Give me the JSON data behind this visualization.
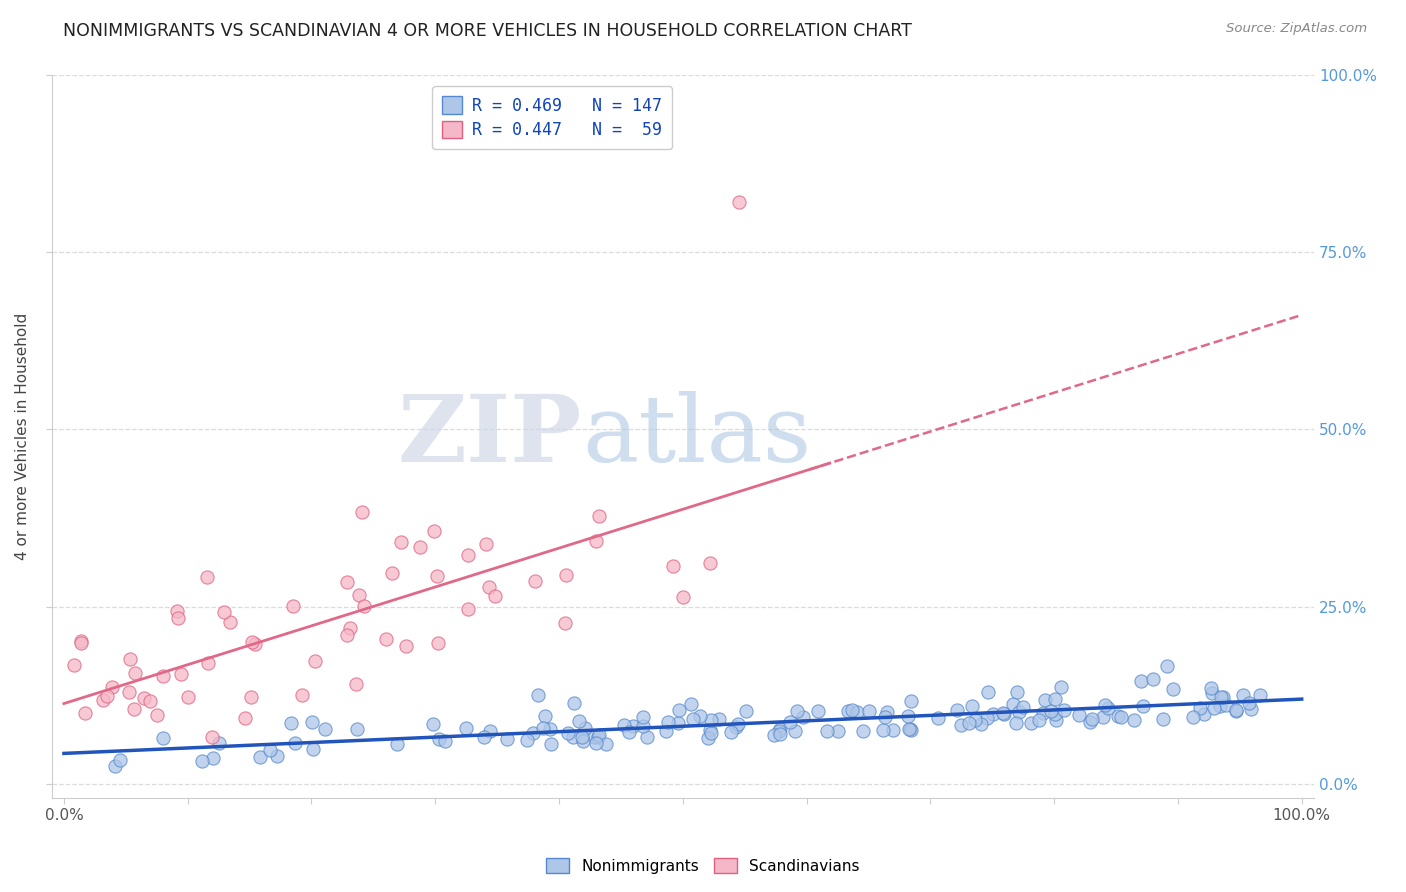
{
  "title": "NONIMMIGRANTS VS SCANDINAVIAN 4 OR MORE VEHICLES IN HOUSEHOLD CORRELATION CHART",
  "source": "Source: ZipAtlas.com",
  "ylabel": "4 or more Vehicles in Household",
  "legend_text_blue": "R = 0.469   N = 147",
  "legend_text_pink": "R = 0.447   N =  59",
  "watermark_zip": "ZIP",
  "watermark_atlas": "atlas",
  "blue_scatter_color": "#aec6e8",
  "blue_scatter_edge": "#5588cc",
  "pink_scatter_color": "#f5b8c8",
  "pink_scatter_edge": "#e06080",
  "blue_line_color": "#2255bb",
  "pink_line_color": "#e06888",
  "blue_R": 0.469,
  "pink_R": 0.447,
  "blue_N": 147,
  "pink_N": 59,
  "background_color": "#ffffff",
  "grid_color": "#cccccc",
  "right_axis_color": "#5599dd",
  "title_color": "#222222",
  "source_color": "#888888"
}
